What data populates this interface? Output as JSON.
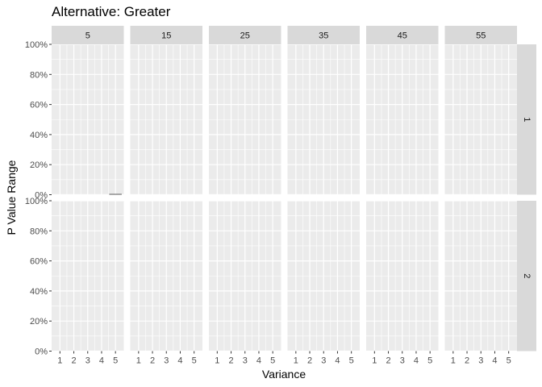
{
  "chart_data": {
    "type": "bar",
    "title": "Alternative: Greater",
    "xlabel": "Variance",
    "ylabel": "P Value Range",
    "x_ticks": [
      "1",
      "2",
      "3",
      "4",
      "5"
    ],
    "xlim": [
      0.4,
      5.6
    ],
    "y_ticks": [
      "0%",
      "20%",
      "40%",
      "60%",
      "80%",
      "100%"
    ],
    "ylim": [
      0,
      1
    ],
    "col_facets": [
      "5",
      "15",
      "25",
      "35",
      "45",
      "55"
    ],
    "row_facets": [
      "1",
      "2"
    ],
    "grid": true,
    "series": [
      {
        "facet": {
          "col": "5",
          "row": "1"
        },
        "x": [
          5
        ],
        "values": [
          0.002
        ]
      }
    ],
    "colors": {
      "panel_bg": "#ebebeb",
      "strip_bg": "#d9d9d9",
      "grid_major": "#ffffff",
      "bar": "#595959",
      "tick_text": "#4d4d4d",
      "strip_text": "#1a1a1a"
    }
  }
}
